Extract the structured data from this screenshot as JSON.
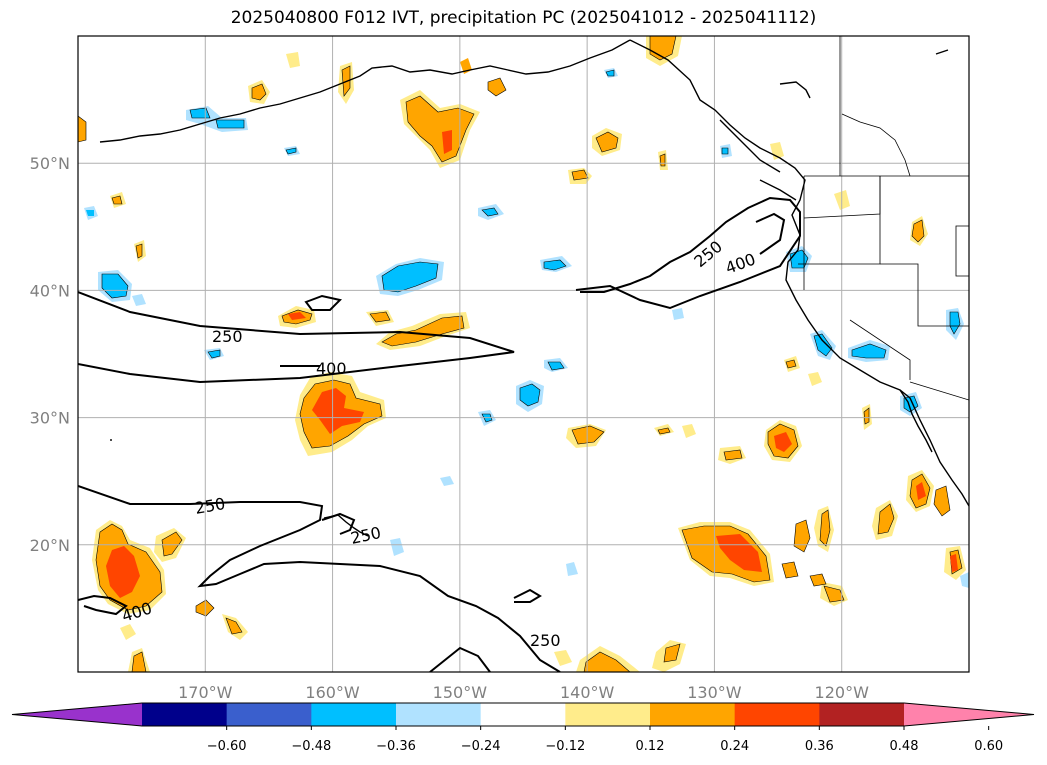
{
  "title": "2025040800 F012 IVT, precipitation PC (2025041012 - 2025041112)",
  "map": {
    "projection": "PlateCarree",
    "lon_range": [
      -180,
      -110
    ],
    "lat_range": [
      10,
      60
    ],
    "grid": true,
    "x_ticks": [
      {
        "lon": -170,
        "label": "170°W"
      },
      {
        "lon": -160,
        "label": "160°W"
      },
      {
        "lon": -150,
        "label": "150°W"
      },
      {
        "lon": -140,
        "label": "140°W"
      },
      {
        "lon": -130,
        "label": "130°W"
      },
      {
        "lon": -120,
        "label": "120°W"
      }
    ],
    "y_ticks": [
      {
        "lat": 20,
        "label": "20°N"
      },
      {
        "lat": 30,
        "label": "30°N"
      },
      {
        "lat": 40,
        "label": "40°N"
      },
      {
        "lat": 50,
        "label": "50°N"
      }
    ],
    "ivt_contour_labels": [
      "250",
      "400",
      "250",
      "400",
      "250",
      "250",
      "400",
      "250"
    ]
  },
  "colorbar": {
    "colors": [
      "#9932CC",
      "#00008B",
      "#3A5FCD",
      "#00BFFF",
      "#B0E2FF",
      "#FFFFFF",
      "#FFEC8B",
      "#FFA500",
      "#FF4500",
      "#B22222",
      "#FF82AB"
    ],
    "tick_labels": [
      "−0.60",
      "−0.48",
      "−0.36",
      "−0.24",
      "−0.12",
      "0.12",
      "0.24",
      "0.36",
      "0.48",
      "0.60"
    ]
  }
}
